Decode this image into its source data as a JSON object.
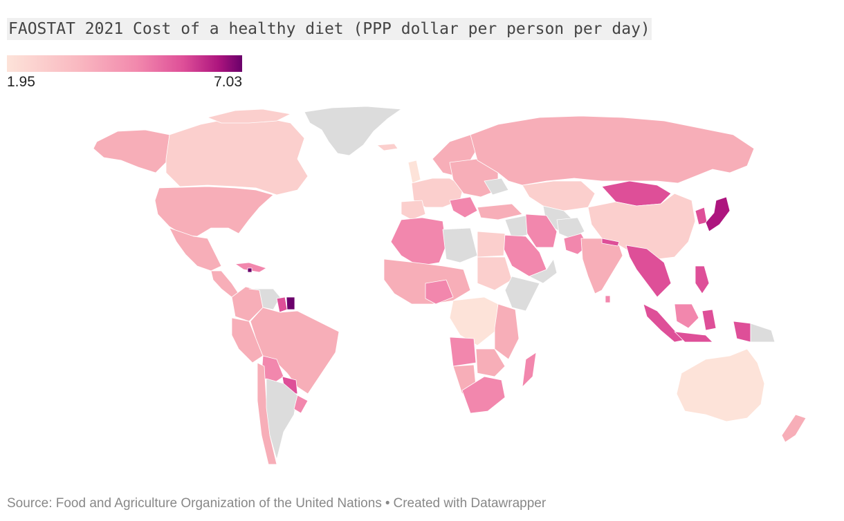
{
  "title": "FAOSTAT 2021 Cost of a healthy diet (PPP dollar per person per day)",
  "legend": {
    "min_label": "1.95",
    "max_label": "7.03",
    "min": 1.95,
    "max": 7.03,
    "colors": [
      "#fde3d9",
      "#f9b9c1",
      "#f289ad",
      "#de4f98",
      "#ad157e",
      "#6a006a"
    ]
  },
  "footer": {
    "source": "Source: Food and Agriculture Organization of the United Nations",
    "separator": "•",
    "credit": "Created with Datawrapper"
  },
  "colors": {
    "no_data": "#dcdcdc",
    "lightest": "#fde3d9",
    "light": "#fbcfcd",
    "mid_light": "#f7aeb8",
    "mid": "#f287ad",
    "strong": "#de4f98",
    "darker": "#ad157e",
    "darkest": "#6a006a"
  }
}
